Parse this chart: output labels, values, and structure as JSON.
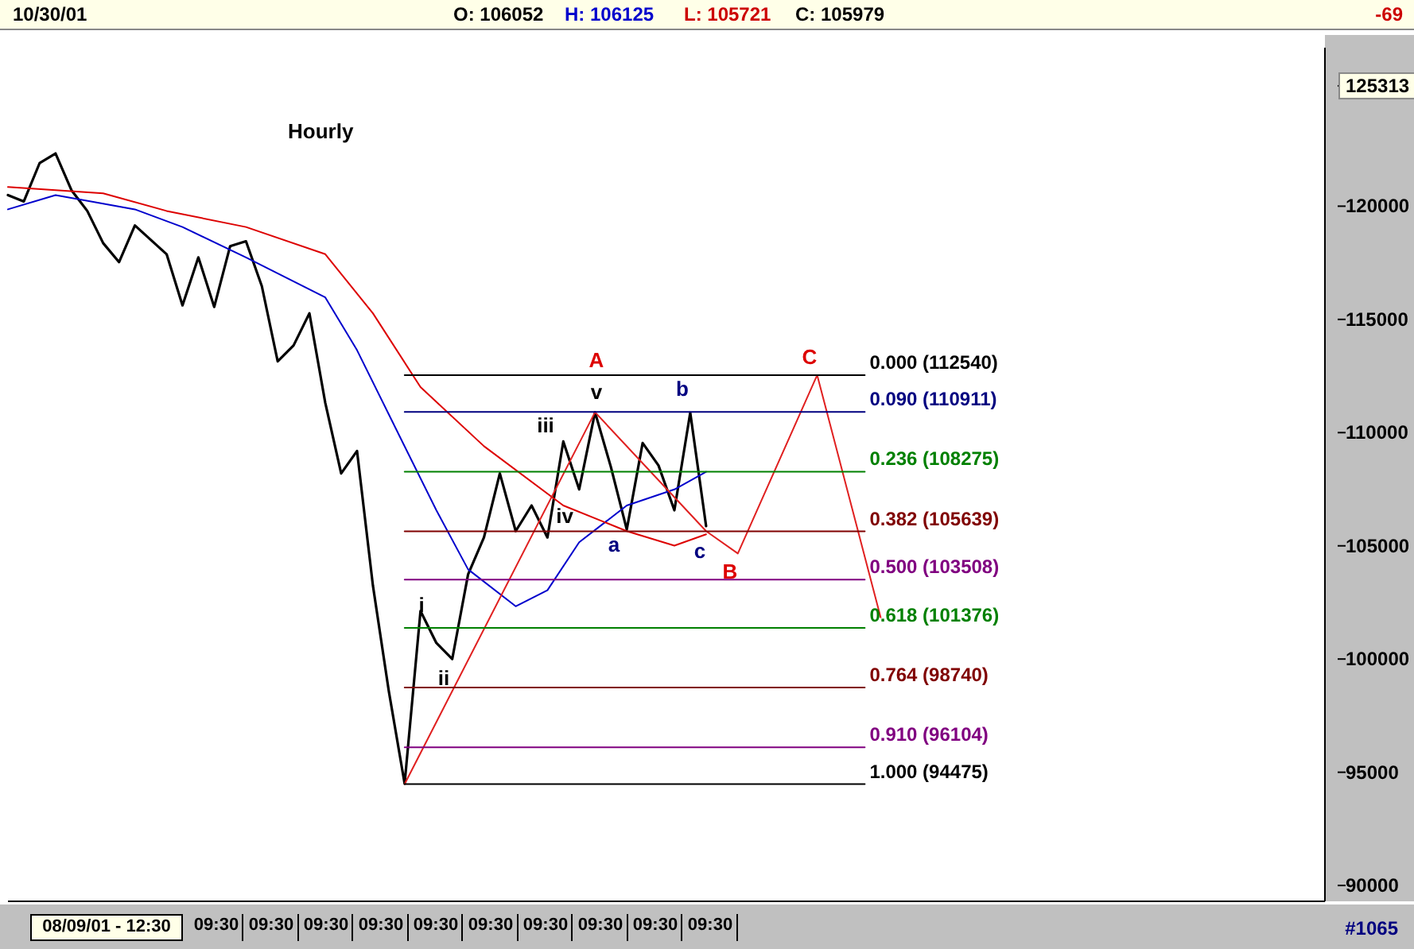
{
  "chart_data": {
    "type": "line",
    "title": "Hourly",
    "annotations": [
      "10/30/01",
      "O: 106052",
      "H: 106125",
      "L: 105721",
      "C: 105979",
      "-69",
      "#1065",
      "08/09/01 - 12:30",
      "09:30",
      "09:30",
      "09:30",
      "09:30",
      "09:30",
      "09:30",
      "09:30",
      "09:30",
      "09:30",
      "09:30",
      "A",
      "v",
      "iii",
      "iv",
      "a",
      "b",
      "c",
      "B",
      "C",
      "i",
      "ii"
    ],
    "categories": [
      null,
      null,
      null,
      null,
      null,
      null,
      null,
      null,
      null,
      null,
      null,
      null,
      null,
      null,
      null,
      null,
      null,
      null,
      null,
      null,
      null,
      null,
      null,
      null,
      null,
      null,
      null,
      null,
      null,
      null,
      null,
      null,
      null,
      null,
      null,
      null,
      null,
      null,
      null,
      null,
      null,
      null,
      null,
      null,
      null,
      null,
      null,
      null,
      null,
      null,
      null,
      null,
      null,
      null,
      null,
      null,
      null,
      null,
      null,
      null,
      null,
      null,
      null,
      null,
      null,
      null,
      null,
      null,
      null,
      null,
      null,
      null,
      null,
      null,
      null,
      null,
      null,
      null,
      null,
      null,
      null,
      null,
      null,
      null
    ],
    "ylim": [
      89300,
      127000
    ],
    "yticks": [
      90000,
      95000,
      100000,
      105000,
      110000,
      115000,
      120000,
      {
        "value": 125313,
        "label": "125313"
      }
    ],
    "tick_labels": "y",
    "grid": false,
    "legend": false,
    "marker": "none",
    "line_style": "solid",
    "series": [
      {
        "color": "#000000",
        "values": [
          120490,
          120210,
          121910,
          122330,
          120710,
          119790,
          118370,
          117530,
          119150,
          null,
          117880,
          115620,
          117740,
          115550,
          118230,
          118450,
          116470,
          113150,
          113850,
          115270,
          111310,
          108200,
          109190,
          103250,
          98590,
          94500,
          102120,
          100710,
          100000,
          103740,
          105370,
          108200,
          105650,
          106780,
          105370,
          109610,
          107490,
          110900,
          108480,
          105720,
          109540,
          108550,
          106570,
          110880,
          105870,
          null,
          null,
          null,
          null,
          null,
          null,
          null,
          null,
          null,
          null,
          null,
          null,
          null,
          null,
          null,
          null,
          null,
          null,
          null,
          null,
          null,
          null,
          null,
          null,
          null,
          null,
          null,
          null,
          null,
          null,
          null,
          null,
          null,
          null,
          null,
          null,
          null,
          null,
          null
        ]
      },
      {
        "color": "#0000cc",
        "values": [
          119860,
          null,
          null,
          120490,
          null,
          null,
          null,
          null,
          119860,
          null,
          null,
          119080,
          null,
          null,
          null,
          117740,
          null,
          null,
          null,
          null,
          115970,
          null,
          113640,
          null,
          110810,
          null,
          null,
          106570,
          null,
          103960,
          null,
          null,
          102330,
          null,
          103040,
          null,
          105160,
          null,
          null,
          106780,
          null,
          null,
          107490,
          null,
          108270,
          null,
          null,
          null,
          null,
          null,
          null,
          null,
          null,
          null,
          null,
          null,
          null,
          null,
          null,
          null,
          null,
          null,
          null,
          null,
          null,
          null,
          null,
          null,
          null,
          null,
          null,
          null,
          null,
          null,
          null,
          null,
          null,
          null,
          null,
          null,
          null,
          null,
          null,
          null
        ]
      },
      {
        "color": "#dd0000",
        "values": [
          120850,
          null,
          null,
          null,
          null,
          null,
          120570,
          null,
          null,
          null,
          119790,
          null,
          null,
          null,
          null,
          119080,
          null,
          null,
          null,
          null,
          117880,
          null,
          null,
          115270,
          null,
          null,
          112010,
          null,
          null,
          null,
          109400,
          null,
          null,
          null,
          null,
          106780,
          null,
          null,
          null,
          105650,
          null,
          null,
          105010,
          null,
          105510,
          null,
          null,
          null,
          null,
          null,
          null,
          null,
          null,
          null,
          null,
          null,
          null,
          null,
          null,
          null,
          null,
          null,
          null,
          null,
          null,
          null,
          null,
          null,
          null,
          null,
          null,
          null,
          null,
          null,
          null,
          null,
          null,
          null,
          null,
          null,
          null,
          null,
          null,
          null
        ]
      },
      {
        "color": "#e02020",
        "values": [
          null,
          null,
          null,
          null,
          null,
          null,
          null,
          null,
          null,
          null,
          null,
          null,
          null,
          null,
          null,
          null,
          null,
          null,
          null,
          null,
          null,
          null,
          null,
          null,
          null,
          94480,
          null,
          null,
          null,
          null,
          null,
          null,
          null,
          null,
          null,
          null,
          null,
          110900,
          null,
          null,
          null,
          null,
          null,
          null,
          105650,
          null,
          104660,
          null,
          null,
          null,
          null,
          112540,
          null,
          null,
          null,
          101840,
          null,
          null,
          null,
          null,
          null,
          null,
          null,
          null,
          null,
          null,
          null,
          null,
          null,
          null,
          null,
          null,
          null,
          null,
          null,
          null,
          null,
          null,
          null,
          null,
          null,
          null,
          null,
          null
        ]
      },
      {
        "name": "0.000 (112540)",
        "color": "#000000",
        "values": [
          null,
          null,
          null,
          null,
          null,
          null,
          null,
          null,
          null,
          null,
          null,
          null,
          null,
          null,
          null,
          null,
          null,
          null,
          null,
          null,
          null,
          null,
          null,
          null,
          null,
          112540,
          null,
          null,
          null,
          null,
          null,
          null,
          null,
          null,
          null,
          null,
          null,
          null,
          null,
          null,
          null,
          null,
          null,
          null,
          null,
          null,
          null,
          null,
          null,
          null,
          null,
          null,
          null,
          null,
          112540,
          null,
          null,
          null,
          null,
          null,
          null,
          null,
          null,
          null,
          null,
          null,
          null,
          null,
          null,
          null,
          null,
          null,
          null,
          null,
          null,
          null,
          null,
          null,
          null,
          null,
          null,
          null,
          null,
          null
        ]
      },
      {
        "name": "0.090 (110911)",
        "color": "#000080",
        "values": [
          null,
          null,
          null,
          null,
          null,
          null,
          null,
          null,
          null,
          null,
          null,
          null,
          null,
          null,
          null,
          null,
          null,
          null,
          null,
          null,
          null,
          null,
          null,
          null,
          null,
          110911,
          null,
          null,
          null,
          null,
          null,
          null,
          null,
          null,
          null,
          null,
          null,
          null,
          null,
          null,
          null,
          null,
          null,
          null,
          null,
          null,
          null,
          null,
          null,
          null,
          null,
          null,
          null,
          null,
          110911,
          null,
          null,
          null,
          null,
          null,
          null,
          null,
          null,
          null,
          null,
          null,
          null,
          null,
          null,
          null,
          null,
          null,
          null,
          null,
          null,
          null,
          null,
          null,
          null,
          null,
          null,
          null,
          null,
          null
        ]
      },
      {
        "name": "0.236 (108275)",
        "color": "#008000",
        "values": [
          null,
          null,
          null,
          null,
          null,
          null,
          null,
          null,
          null,
          null,
          null,
          null,
          null,
          null,
          null,
          null,
          null,
          null,
          null,
          null,
          null,
          null,
          null,
          null,
          null,
          108275,
          null,
          null,
          null,
          null,
          null,
          null,
          null,
          null,
          null,
          null,
          null,
          null,
          null,
          null,
          null,
          null,
          null,
          null,
          null,
          null,
          null,
          null,
          null,
          null,
          null,
          null,
          null,
          null,
          108275,
          null,
          null,
          null,
          null,
          null,
          null,
          null,
          null,
          null,
          null,
          null,
          null,
          null,
          null,
          null,
          null,
          null,
          null,
          null,
          null,
          null,
          null,
          null,
          null,
          null,
          null,
          null,
          null,
          null
        ]
      },
      {
        "name": "0.382 (105639)",
        "color": "#800000",
        "values": [
          null,
          null,
          null,
          null,
          null,
          null,
          null,
          null,
          null,
          null,
          null,
          null,
          null,
          null,
          null,
          null,
          null,
          null,
          null,
          null,
          null,
          null,
          null,
          null,
          null,
          105639,
          null,
          null,
          null,
          null,
          null,
          null,
          null,
          null,
          null,
          null,
          null,
          null,
          null,
          null,
          null,
          null,
          null,
          null,
          null,
          null,
          null,
          null,
          null,
          null,
          null,
          null,
          null,
          null,
          105639,
          null,
          null,
          null,
          null,
          null,
          null,
          null,
          null,
          null,
          null,
          null,
          null,
          null,
          null,
          null,
          null,
          null,
          null,
          null,
          null,
          null,
          null,
          null,
          null,
          null,
          null,
          null,
          null,
          null
        ]
      },
      {
        "name": "0.500 (103508)",
        "color": "#800080",
        "values": [
          null,
          null,
          null,
          null,
          null,
          null,
          null,
          null,
          null,
          null,
          null,
          null,
          null,
          null,
          null,
          null,
          null,
          null,
          null,
          null,
          null,
          null,
          null,
          null,
          null,
          103508,
          null,
          null,
          null,
          null,
          null,
          null,
          null,
          null,
          null,
          null,
          null,
          null,
          null,
          null,
          null,
          null,
          null,
          null,
          null,
          null,
          null,
          null,
          null,
          null,
          null,
          null,
          null,
          null,
          103508,
          null,
          null,
          null,
          null,
          null,
          null,
          null,
          null,
          null,
          null,
          null,
          null,
          null,
          null,
          null,
          null,
          null,
          null,
          null,
          null,
          null,
          null,
          null,
          null,
          null,
          null,
          null,
          null,
          null
        ]
      },
      {
        "name": "0.618 (101376)",
        "color": "#008000",
        "values": [
          null,
          null,
          null,
          null,
          null,
          null,
          null,
          null,
          null,
          null,
          null,
          null,
          null,
          null,
          null,
          null,
          null,
          null,
          null,
          null,
          null,
          null,
          null,
          null,
          null,
          101376,
          null,
          null,
          null,
          null,
          null,
          null,
          null,
          null,
          null,
          null,
          null,
          null,
          null,
          null,
          null,
          null,
          null,
          null,
          null,
          null,
          null,
          null,
          null,
          null,
          null,
          null,
          null,
          null,
          101376,
          null,
          null,
          null,
          null,
          null,
          null,
          null,
          null,
          null,
          null,
          null,
          null,
          null,
          null,
          null,
          null,
          null,
          null,
          null,
          null,
          null,
          null,
          null,
          null,
          null,
          null,
          null,
          null,
          null
        ]
      },
      {
        "name": "0.764 (98740)",
        "color": "#800000",
        "values": [
          null,
          null,
          null,
          null,
          null,
          null,
          null,
          null,
          null,
          null,
          null,
          null,
          null,
          null,
          null,
          null,
          null,
          null,
          null,
          null,
          null,
          null,
          null,
          null,
          null,
          98740,
          null,
          null,
          null,
          null,
          null,
          null,
          null,
          null,
          null,
          null,
          null,
          null,
          null,
          null,
          null,
          null,
          null,
          null,
          null,
          null,
          null,
          null,
          null,
          null,
          null,
          null,
          null,
          null,
          98740,
          null,
          null,
          null,
          null,
          null,
          null,
          null,
          null,
          null,
          null,
          null,
          null,
          null,
          null,
          null,
          null,
          null,
          null,
          null,
          null,
          null,
          null,
          null,
          null,
          null,
          null,
          null,
          null,
          null
        ]
      },
      {
        "name": "0.910 (96104)",
        "color": "#800080",
        "values": [
          null,
          null,
          null,
          null,
          null,
          null,
          null,
          null,
          null,
          null,
          null,
          null,
          null,
          null,
          null,
          null,
          null,
          null,
          null,
          null,
          null,
          null,
          null,
          null,
          null,
          96104,
          null,
          null,
          null,
          null,
          null,
          null,
          null,
          null,
          null,
          null,
          null,
          null,
          null,
          null,
          null,
          null,
          null,
          null,
          null,
          null,
          null,
          null,
          null,
          null,
          null,
          null,
          null,
          null,
          96104,
          null,
          null,
          null,
          null,
          null,
          null,
          null,
          null,
          null,
          null,
          null,
          null,
          null,
          null,
          null,
          null,
          null,
          null,
          null,
          null,
          null,
          null,
          null,
          null,
          null,
          null,
          null,
          null,
          null
        ]
      },
      {
        "name": "1.000 (94475)",
        "color": "#000000",
        "values": [
          null,
          null,
          null,
          null,
          null,
          null,
          null,
          null,
          null,
          null,
          null,
          null,
          null,
          null,
          null,
          null,
          null,
          null,
          null,
          null,
          null,
          null,
          null,
          null,
          null,
          94475,
          null,
          null,
          null,
          null,
          null,
          null,
          null,
          null,
          null,
          null,
          null,
          null,
          null,
          null,
          null,
          null,
          null,
          null,
          null,
          null,
          null,
          null,
          null,
          null,
          null,
          null,
          null,
          null,
          94475,
          null,
          null,
          null,
          null,
          null,
          null,
          null,
          null,
          null,
          null,
          null,
          null,
          null,
          null,
          null,
          null,
          null,
          null,
          null,
          null,
          null,
          null,
          null,
          null,
          null,
          null,
          null,
          null,
          null
        ]
      }
    ]
  }
}
